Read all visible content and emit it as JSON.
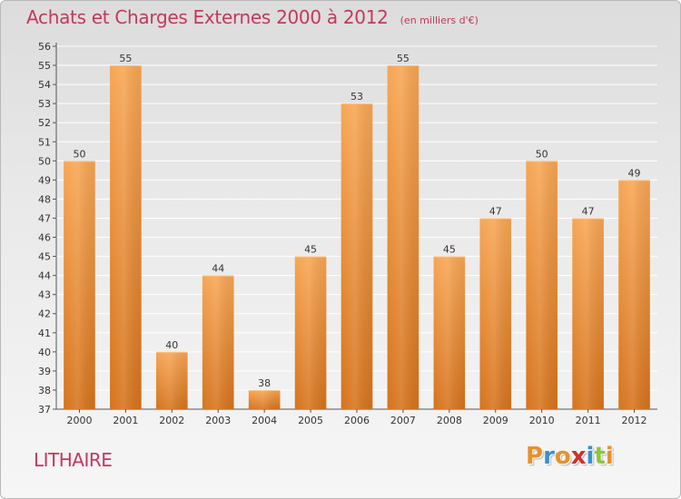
{
  "header": {
    "title": "Achats et Charges Externes 2000 à 2012",
    "unit": "(en milliers d'€)"
  },
  "footer": {
    "commune": "LITHAIRE",
    "logo_letters": [
      "P",
      "r",
      "o",
      "x",
      "i",
      "t",
      "i"
    ],
    "logo_colors": [
      "#e8902a",
      "#3a8fd0",
      "#e8902a",
      "#d0302a",
      "#3a8fd0",
      "#8cc63e",
      "#e8902a"
    ]
  },
  "colors": {
    "bar_top": "#f7a654",
    "bar_bottom": "#d6731c",
    "title": "#c8365a",
    "grid": "#ffffff"
  },
  "chart_data": {
    "type": "bar",
    "title": "Achats et Charges Externes 2000 à 2012",
    "subtitle": "(en milliers d'€)",
    "xlabel": "",
    "ylabel": "",
    "categories": [
      "2000",
      "2001",
      "2002",
      "2003",
      "2004",
      "2005",
      "2006",
      "2007",
      "2008",
      "2009",
      "2010",
      "2011",
      "2012"
    ],
    "values": [
      50,
      55,
      40,
      44,
      38,
      45,
      53,
      55,
      45,
      47,
      50,
      47,
      49
    ],
    "ylim": [
      37,
      56
    ],
    "yticks": [
      37,
      38,
      39,
      40,
      41,
      42,
      43,
      44,
      45,
      46,
      47,
      48,
      49,
      50,
      51,
      52,
      53,
      54,
      55,
      56
    ],
    "grid": true,
    "data_labels": true
  }
}
